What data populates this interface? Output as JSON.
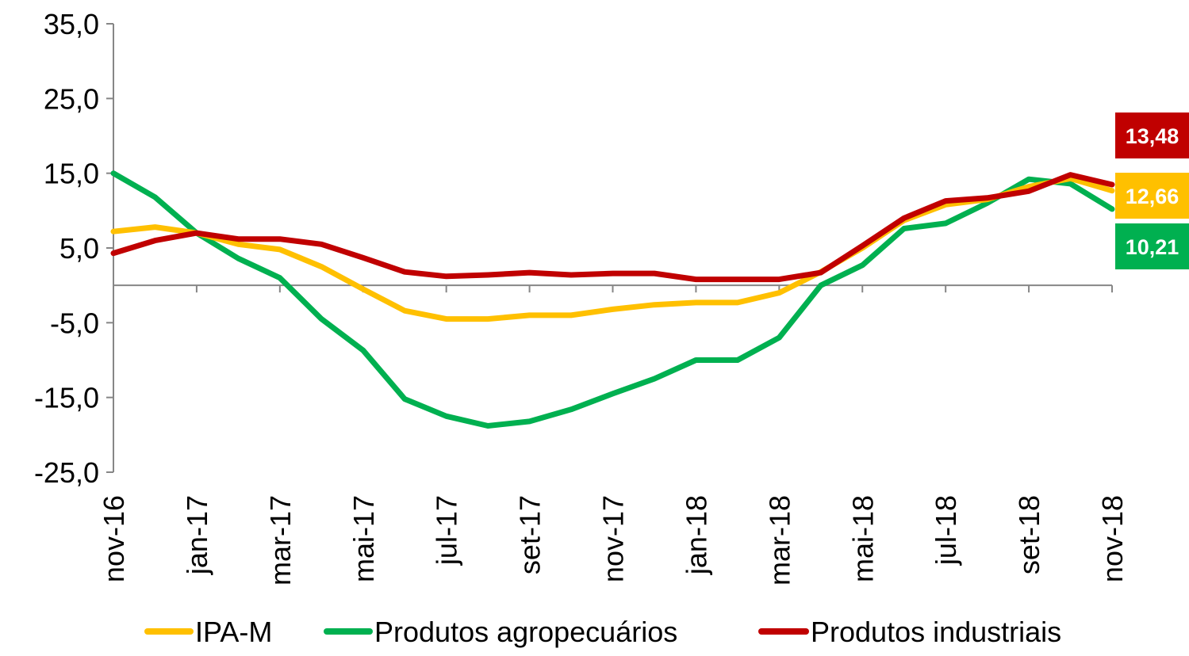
{
  "chart_data": {
    "type": "line",
    "title": "",
    "xlabel": "",
    "ylabel": "",
    "ylim": [
      -25,
      35
    ],
    "yticks": [
      "35,0",
      "25,0",
      "15,0",
      "5,0",
      "-5,0",
      "-15,0",
      "-25,0"
    ],
    "ytick_values": [
      35,
      25,
      15,
      5,
      -5,
      -15,
      -25
    ],
    "x": [
      "nov-16",
      "dez-16",
      "jan-17",
      "fev-17",
      "mar-17",
      "abr-17",
      "mai-17",
      "jun-17",
      "jul-17",
      "ago-17",
      "set-17",
      "out-17",
      "nov-17",
      "dez-17",
      "jan-18",
      "fev-18",
      "mar-18",
      "abr-18",
      "mai-18",
      "jun-18",
      "jul-18",
      "ago-18",
      "set-18",
      "out-18",
      "nov-18"
    ],
    "xtick_labels": [
      "nov-16",
      "jan-17",
      "mar-17",
      "mai-17",
      "jul-17",
      "set-17",
      "nov-17",
      "jan-18",
      "mar-18",
      "mai-18",
      "jul-18",
      "set-18",
      "nov-18"
    ],
    "series": [
      {
        "name": "IPA-M",
        "color": "#FFC000",
        "values": [
          7.2,
          7.8,
          7.0,
          5.5,
          4.8,
          2.5,
          -0.5,
          -3.4,
          -4.5,
          -4.5,
          -4.0,
          -4.0,
          -3.2,
          -2.6,
          -2.3,
          -2.3,
          -1.0,
          1.8,
          5.0,
          8.7,
          10.8,
          11.5,
          13.2,
          14.3,
          12.66
        ],
        "end_label": "12,66"
      },
      {
        "name": "Produtos agropecuários",
        "color": "#00B050",
        "values": [
          15.0,
          11.8,
          7.0,
          3.6,
          1.0,
          -4.5,
          -8.7,
          -15.2,
          -17.5,
          -18.8,
          -18.2,
          -16.6,
          -14.5,
          -12.5,
          -10.0,
          -10.0,
          -7.0,
          0.0,
          2.7,
          7.6,
          8.3,
          11.0,
          14.2,
          13.6,
          10.21
        ],
        "end_label": "10,21"
      },
      {
        "name": "Produtos industriais",
        "color": "#C00000",
        "values": [
          4.3,
          6.0,
          7.0,
          6.2,
          6.2,
          5.5,
          3.7,
          1.8,
          1.2,
          1.4,
          1.7,
          1.4,
          1.6,
          1.6,
          0.8,
          0.8,
          0.8,
          1.7,
          5.3,
          9.0,
          11.3,
          11.7,
          12.6,
          14.8,
          13.48
        ],
        "end_label": "13,48"
      }
    ],
    "legend_position": "bottom",
    "grid": false
  }
}
